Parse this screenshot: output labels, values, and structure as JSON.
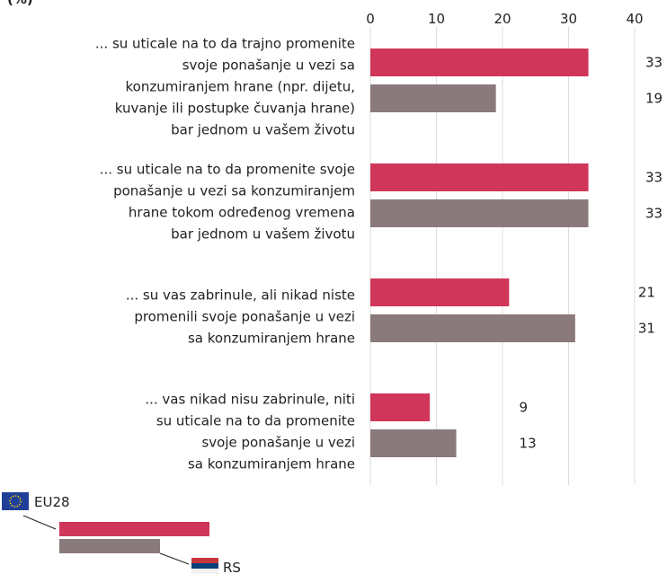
{
  "chart_data": {
    "type": "bar",
    "orientation": "horizontal",
    "unit": "(%)",
    "categories": [
      [
        "... su uticale na to da trajno promenite",
        "svoje ponašanje u vezi sa",
        "konzumiranjem hrane (npr. dijetu,",
        "kuvanje ili postupke čuvanja hrane)",
        "bar jednom u vašem životu"
      ],
      [
        "... su uticale na to da promenite svoje",
        "ponašanje u vezi sa konzumiranjem",
        "hrane tokom određenog vremena",
        "bar jednom u vašem životu"
      ],
      [
        "... su vas zabrinule, ali nikad niste",
        "promenili svoje ponašanje u vezi",
        "sa konzumiranjem hrane"
      ],
      [
        "... vas nikad nisu zabrinule, niti",
        "su uticale na to da promenite",
        "svoje ponašanje u vezi",
        "sa konzumiranjem hrane"
      ]
    ],
    "series": [
      {
        "name": "EU28",
        "color": "#d0365a",
        "values": [
          33,
          33,
          21,
          9
        ]
      },
      {
        "name": "RS",
        "color": "#8a7a7b",
        "values": [
          19,
          33,
          31,
          13
        ]
      }
    ],
    "xlim": [
      0,
      40
    ],
    "xticks": [
      0,
      10,
      20,
      30,
      40
    ],
    "grid": true,
    "legend": "bottom-left"
  }
}
